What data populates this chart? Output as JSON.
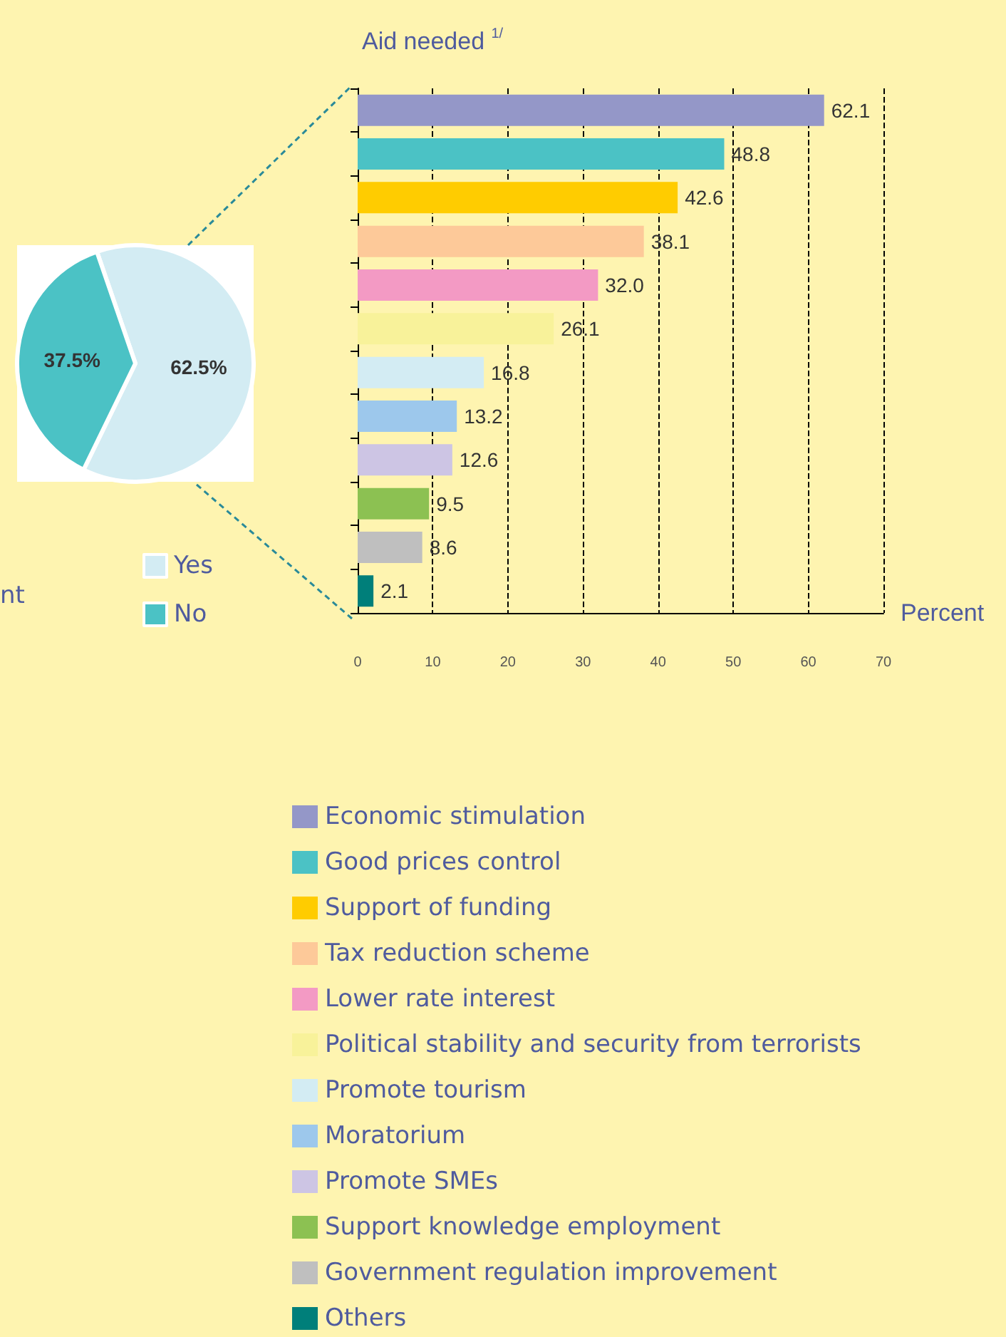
{
  "chart_data": [
    {
      "type": "pie",
      "categories": [
        "Yes",
        "No"
      ],
      "values": [
        62.5,
        37.5
      ],
      "value_labels": [
        "62.5%",
        "37.5%"
      ],
      "colors": [
        "#d3ecf3",
        "#4bc2c5"
      ],
      "legend": "bottom right",
      "annotations": [
        "nt"
      ]
    },
    {
      "type": "bar",
      "title": "Aid needed $^{1/}$",
      "xlabel": "Percent",
      "orientation": "horizontal",
      "categories": [
        null,
        null,
        null,
        null,
        null,
        null,
        null,
        null,
        null,
        null,
        null,
        null
      ],
      "series": [
        {
          "name": "Economic stimulation",
          "color": "#9497c8",
          "values": [
            62.1,
            null,
            null,
            null,
            null,
            null,
            null,
            null,
            null,
            null,
            null,
            null
          ],
          "value_labels": [
            "62.1",
            null,
            null,
            null,
            null,
            null,
            null,
            null,
            null,
            null,
            null,
            null
          ]
        },
        {
          "name": "Good prices control",
          "color": "#4bc2c5",
          "values": [
            null,
            48.8,
            null,
            null,
            null,
            null,
            null,
            null,
            null,
            null,
            null,
            null
          ],
          "value_labels": [
            null,
            "48.8",
            null,
            null,
            null,
            null,
            null,
            null,
            null,
            null,
            null,
            null
          ]
        },
        {
          "name": "Support of funding",
          "color": "#ffcc00",
          "values": [
            null,
            null,
            42.6,
            null,
            null,
            null,
            null,
            null,
            null,
            null,
            null,
            null
          ],
          "value_labels": [
            null,
            null,
            "42.6",
            null,
            null,
            null,
            null,
            null,
            null,
            null,
            null,
            null
          ]
        },
        {
          "name": "Tax reduction scheme",
          "color": "#fdc999",
          "values": [
            null,
            null,
            null,
            38.1,
            null,
            null,
            null,
            null,
            null,
            null,
            null,
            null
          ],
          "value_labels": [
            null,
            null,
            null,
            "38.1",
            null,
            null,
            null,
            null,
            null,
            null,
            null,
            null
          ]
        },
        {
          "name": "Lower rate interest",
          "color": "#f39ac4",
          "values": [
            null,
            null,
            null,
            null,
            32.0,
            null,
            null,
            null,
            null,
            null,
            null,
            null
          ],
          "value_labels": [
            null,
            null,
            null,
            null,
            "32.0",
            null,
            null,
            null,
            null,
            null,
            null,
            null
          ]
        },
        {
          "name": "Political stability and security from terrorists",
          "color": "#f8f29a",
          "values": [
            null,
            null,
            null,
            null,
            null,
            26.1,
            null,
            null,
            null,
            null,
            null,
            null
          ],
          "value_labels": [
            null,
            null,
            null,
            null,
            null,
            "26.1",
            null,
            null,
            null,
            null,
            null,
            null
          ]
        },
        {
          "name": "Promote tourism",
          "color": "#d3ecf3",
          "values": [
            null,
            null,
            null,
            null,
            null,
            null,
            16.8,
            null,
            null,
            null,
            null,
            null
          ],
          "value_labels": [
            null,
            null,
            null,
            null,
            null,
            null,
            "16.8",
            null,
            null,
            null,
            null,
            null
          ]
        },
        {
          "name": "Moratorium",
          "color": "#9dc8ec",
          "values": [
            null,
            null,
            null,
            null,
            null,
            null,
            null,
            13.2,
            null,
            null,
            null,
            null
          ],
          "value_labels": [
            null,
            null,
            null,
            null,
            null,
            null,
            null,
            "13.2",
            null,
            null,
            null,
            null
          ]
        },
        {
          "name": "Promote SMEs",
          "color": "#cdc5e4",
          "values": [
            null,
            null,
            null,
            null,
            null,
            null,
            null,
            null,
            12.6,
            null,
            null,
            null
          ],
          "value_labels": [
            null,
            null,
            null,
            null,
            null,
            null,
            null,
            null,
            "12.6",
            null,
            null,
            null
          ]
        },
        {
          "name": "Support knowledge employment",
          "color": "#8cc152",
          "values": [
            null,
            null,
            null,
            null,
            null,
            null,
            null,
            null,
            null,
            9.5,
            null,
            null
          ],
          "value_labels": [
            null,
            null,
            null,
            null,
            null,
            null,
            null,
            null,
            null,
            "9.5",
            null,
            null
          ]
        },
        {
          "name": "Government regulation improvement",
          "color": "#bfbfbf",
          "values": [
            null,
            null,
            null,
            null,
            null,
            null,
            null,
            null,
            null,
            null,
            8.6,
            null
          ],
          "value_labels": [
            null,
            null,
            null,
            null,
            null,
            null,
            null,
            null,
            null,
            null,
            "8.6",
            null
          ]
        },
        {
          "name": "Others",
          "color": "#007f7a",
          "values": [
            null,
            null,
            null,
            null,
            null,
            null,
            null,
            null,
            null,
            null,
            null,
            2.1
          ],
          "value_labels": [
            null,
            null,
            null,
            null,
            null,
            null,
            null,
            null,
            null,
            null,
            null,
            "2.1"
          ]
        }
      ],
      "xlim": [
        0,
        70
      ],
      "xticks": [
        0,
        10,
        20,
        30,
        40,
        50,
        60,
        70
      ],
      "grid": "x",
      "legend": "bottom",
      "tick_labels": "x"
    }
  ]
}
